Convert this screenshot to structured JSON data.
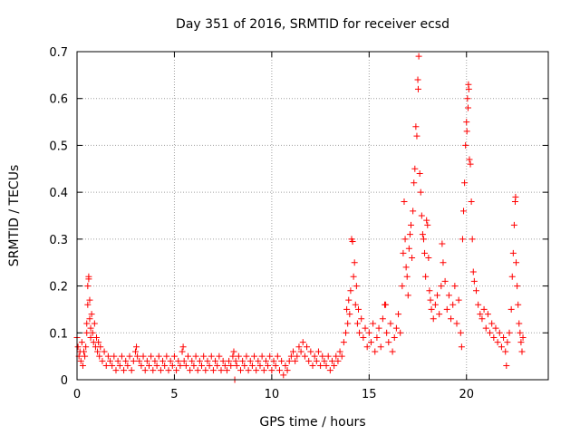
{
  "chart_data": {
    "type": "scatter",
    "title": "Day 351 of 2016, SRMTID for receiver ecsd",
    "xlabel": "GPS time / hours",
    "ylabel": "SRMTID / TECUs",
    "xlim": [
      0,
      24.2
    ],
    "ylim": [
      0,
      0.7
    ],
    "grid": true,
    "marker": "+",
    "color": "#ff0000",
    "xticks": [
      {
        "value": 0,
        "label": "0"
      },
      {
        "value": 5,
        "label": "5"
      },
      {
        "value": 10,
        "label": "10"
      },
      {
        "value": 15,
        "label": "15"
      },
      {
        "value": 20,
        "label": "20"
      }
    ],
    "yticks": [
      {
        "value": 0,
        "label": "0"
      },
      {
        "value": 0.1,
        "label": "0.1"
      },
      {
        "value": 0.2,
        "label": "0.2"
      },
      {
        "value": 0.3,
        "label": "0.3"
      },
      {
        "value": 0.4,
        "label": "0.4"
      },
      {
        "value": 0.5,
        "label": "0.5"
      },
      {
        "value": 0.6,
        "label": "0.6"
      },
      {
        "value": 0.7,
        "label": "0.7"
      }
    ],
    "series": [
      {
        "name": "SRMTID",
        "points": [
          [
            0.0,
            0.09
          ],
          [
            0.05,
            0.07
          ],
          [
            0.1,
            0.05
          ],
          [
            0.15,
            0.06
          ],
          [
            0.2,
            0.04
          ],
          [
            0.25,
            0.08
          ],
          [
            0.3,
            0.03
          ],
          [
            0.35,
            0.06
          ],
          [
            0.4,
            0.05
          ],
          [
            0.45,
            0.07
          ],
          [
            0.5,
            0.1
          ],
          [
            0.5,
            0.12
          ],
          [
            0.55,
            0.16
          ],
          [
            0.55,
            0.2
          ],
          [
            0.6,
            0.22
          ],
          [
            0.6,
            0.215
          ],
          [
            0.65,
            0.13
          ],
          [
            0.65,
            0.17
          ],
          [
            0.7,
            0.11
          ],
          [
            0.7,
            0.09
          ],
          [
            0.75,
            0.14
          ],
          [
            0.8,
            0.1
          ],
          [
            0.85,
            0.08
          ],
          [
            0.9,
            0.12
          ],
          [
            0.95,
            0.07
          ],
          [
            1.0,
            0.09
          ],
          [
            1.05,
            0.06
          ],
          [
            1.1,
            0.08
          ],
          [
            1.15,
            0.05
          ],
          [
            1.2,
            0.07
          ],
          [
            1.3,
            0.04
          ],
          [
            1.4,
            0.06
          ],
          [
            1.5,
            0.03
          ],
          [
            1.6,
            0.05
          ],
          [
            1.7,
            0.04
          ],
          [
            1.8,
            0.03
          ],
          [
            1.9,
            0.05
          ],
          [
            2.0,
            0.02
          ],
          [
            2.1,
            0.04
          ],
          [
            2.2,
            0.03
          ],
          [
            2.3,
            0.05
          ],
          [
            2.4,
            0.02
          ],
          [
            2.5,
            0.04
          ],
          [
            2.6,
            0.03
          ],
          [
            2.7,
            0.05
          ],
          [
            2.8,
            0.02
          ],
          [
            2.9,
            0.04
          ],
          [
            3.0,
            0.06
          ],
          [
            3.05,
            0.07
          ],
          [
            3.1,
            0.05
          ],
          [
            3.2,
            0.04
          ],
          [
            3.3,
            0.03
          ],
          [
            3.4,
            0.05
          ],
          [
            3.5,
            0.02
          ],
          [
            3.6,
            0.04
          ],
          [
            3.7,
            0.03
          ],
          [
            3.8,
            0.05
          ],
          [
            3.9,
            0.02
          ],
          [
            4.0,
            0.04
          ],
          [
            4.1,
            0.03
          ],
          [
            4.2,
            0.05
          ],
          [
            4.3,
            0.02
          ],
          [
            4.4,
            0.04
          ],
          [
            4.5,
            0.03
          ],
          [
            4.6,
            0.05
          ],
          [
            4.7,
            0.02
          ],
          [
            4.8,
            0.04
          ],
          [
            4.9,
            0.03
          ],
          [
            5.0,
            0.05
          ],
          [
            5.1,
            0.02
          ],
          [
            5.2,
            0.04
          ],
          [
            5.3,
            0.03
          ],
          [
            5.4,
            0.06
          ],
          [
            5.45,
            0.07
          ],
          [
            5.5,
            0.04
          ],
          [
            5.6,
            0.03
          ],
          [
            5.7,
            0.05
          ],
          [
            5.8,
            0.02
          ],
          [
            5.9,
            0.04
          ],
          [
            6.0,
            0.03
          ],
          [
            6.1,
            0.05
          ],
          [
            6.2,
            0.02
          ],
          [
            6.3,
            0.04
          ],
          [
            6.4,
            0.03
          ],
          [
            6.5,
            0.05
          ],
          [
            6.6,
            0.02
          ],
          [
            6.7,
            0.04
          ],
          [
            6.8,
            0.03
          ],
          [
            6.9,
            0.05
          ],
          [
            7.0,
            0.02
          ],
          [
            7.1,
            0.04
          ],
          [
            7.2,
            0.03
          ],
          [
            7.3,
            0.05
          ],
          [
            7.4,
            0.02
          ],
          [
            7.5,
            0.04
          ],
          [
            7.6,
            0.03
          ],
          [
            7.7,
            0.02
          ],
          [
            7.8,
            0.04
          ],
          [
            7.9,
            0.03
          ],
          [
            8.0,
            0.05
          ],
          [
            8.05,
            0.06
          ],
          [
            8.1,
            0.0
          ],
          [
            8.15,
            0.04
          ],
          [
            8.2,
            0.03
          ],
          [
            8.3,
            0.05
          ],
          [
            8.4,
            0.02
          ],
          [
            8.5,
            0.04
          ],
          [
            8.6,
            0.03
          ],
          [
            8.7,
            0.05
          ],
          [
            8.8,
            0.02
          ],
          [
            8.9,
            0.04
          ],
          [
            9.0,
            0.03
          ],
          [
            9.1,
            0.05
          ],
          [
            9.2,
            0.02
          ],
          [
            9.3,
            0.04
          ],
          [
            9.4,
            0.03
          ],
          [
            9.5,
            0.05
          ],
          [
            9.6,
            0.02
          ],
          [
            9.7,
            0.04
          ],
          [
            9.8,
            0.03
          ],
          [
            9.9,
            0.05
          ],
          [
            10.0,
            0.02
          ],
          [
            10.1,
            0.04
          ],
          [
            10.2,
            0.03
          ],
          [
            10.3,
            0.05
          ],
          [
            10.4,
            0.02
          ],
          [
            10.5,
            0.04
          ],
          [
            10.6,
            0.01
          ],
          [
            10.7,
            0.03
          ],
          [
            10.8,
            0.02
          ],
          [
            10.9,
            0.04
          ],
          [
            11.0,
            0.05
          ],
          [
            11.1,
            0.06
          ],
          [
            11.2,
            0.04
          ],
          [
            11.3,
            0.05
          ],
          [
            11.4,
            0.07
          ],
          [
            11.5,
            0.06
          ],
          [
            11.6,
            0.08
          ],
          [
            11.7,
            0.05
          ],
          [
            11.8,
            0.07
          ],
          [
            11.9,
            0.04
          ],
          [
            12.0,
            0.06
          ],
          [
            12.1,
            0.03
          ],
          [
            12.2,
            0.05
          ],
          [
            12.3,
            0.04
          ],
          [
            12.4,
            0.06
          ],
          [
            12.5,
            0.03
          ],
          [
            12.6,
            0.05
          ],
          [
            12.7,
            0.04
          ],
          [
            12.8,
            0.03
          ],
          [
            12.9,
            0.05
          ],
          [
            13.0,
            0.02
          ],
          [
            13.1,
            0.04
          ],
          [
            13.2,
            0.03
          ],
          [
            13.3,
            0.05
          ],
          [
            13.4,
            0.04
          ],
          [
            13.5,
            0.06
          ],
          [
            13.6,
            0.05
          ],
          [
            13.7,
            0.08
          ],
          [
            13.8,
            0.1
          ],
          [
            13.85,
            0.15
          ],
          [
            13.9,
            0.12
          ],
          [
            13.95,
            0.17
          ],
          [
            14.0,
            0.14
          ],
          [
            14.05,
            0.19
          ],
          [
            14.1,
            0.3
          ],
          [
            14.15,
            0.295
          ],
          [
            14.2,
            0.22
          ],
          [
            14.25,
            0.25
          ],
          [
            14.3,
            0.16
          ],
          [
            14.35,
            0.2
          ],
          [
            14.4,
            0.12
          ],
          [
            14.45,
            0.15
          ],
          [
            14.5,
            0.1
          ],
          [
            14.6,
            0.13
          ],
          [
            14.7,
            0.09
          ],
          [
            14.8,
            0.11
          ],
          [
            14.9,
            0.07
          ],
          [
            15.0,
            0.1
          ],
          [
            15.1,
            0.08
          ],
          [
            15.2,
            0.12
          ],
          [
            15.3,
            0.06
          ],
          [
            15.4,
            0.09
          ],
          [
            15.5,
            0.11
          ],
          [
            15.6,
            0.07
          ],
          [
            15.7,
            0.13
          ],
          [
            15.8,
            0.16
          ],
          [
            15.85,
            0.16
          ],
          [
            15.9,
            0.1
          ],
          [
            16.0,
            0.08
          ],
          [
            16.1,
            0.12
          ],
          [
            16.2,
            0.06
          ],
          [
            16.3,
            0.09
          ],
          [
            16.4,
            0.11
          ],
          [
            16.5,
            0.14
          ],
          [
            16.6,
            0.1
          ],
          [
            16.7,
            0.2
          ],
          [
            16.75,
            0.27
          ],
          [
            16.8,
            0.38
          ],
          [
            16.85,
            0.3
          ],
          [
            16.9,
            0.24
          ],
          [
            16.95,
            0.22
          ],
          [
            17.0,
            0.18
          ],
          [
            17.05,
            0.28
          ],
          [
            17.1,
            0.31
          ],
          [
            17.15,
            0.33
          ],
          [
            17.2,
            0.26
          ],
          [
            17.25,
            0.36
          ],
          [
            17.3,
            0.42
          ],
          [
            17.35,
            0.45
          ],
          [
            17.4,
            0.54
          ],
          [
            17.45,
            0.52
          ],
          [
            17.5,
            0.64
          ],
          [
            17.52,
            0.62
          ],
          [
            17.55,
            0.69
          ],
          [
            17.6,
            0.44
          ],
          [
            17.65,
            0.4
          ],
          [
            17.7,
            0.35
          ],
          [
            17.75,
            0.31
          ],
          [
            17.8,
            0.3
          ],
          [
            17.85,
            0.27
          ],
          [
            17.9,
            0.22
          ],
          [
            17.95,
            0.34
          ],
          [
            18.0,
            0.33
          ],
          [
            18.05,
            0.26
          ],
          [
            18.1,
            0.19
          ],
          [
            18.15,
            0.17
          ],
          [
            18.2,
            0.15
          ],
          [
            18.3,
            0.13
          ],
          [
            18.4,
            0.16
          ],
          [
            18.5,
            0.18
          ],
          [
            18.6,
            0.14
          ],
          [
            18.7,
            0.2
          ],
          [
            18.75,
            0.29
          ],
          [
            18.8,
            0.25
          ],
          [
            18.9,
            0.21
          ],
          [
            19.0,
            0.15
          ],
          [
            19.1,
            0.18
          ],
          [
            19.2,
            0.13
          ],
          [
            19.3,
            0.16
          ],
          [
            19.4,
            0.2
          ],
          [
            19.5,
            0.12
          ],
          [
            19.6,
            0.17
          ],
          [
            19.7,
            0.1
          ],
          [
            19.75,
            0.07
          ],
          [
            19.8,
            0.3
          ],
          [
            19.85,
            0.36
          ],
          [
            19.9,
            0.42
          ],
          [
            19.95,
            0.5
          ],
          [
            20.0,
            0.55
          ],
          [
            20.02,
            0.53
          ],
          [
            20.05,
            0.6
          ],
          [
            20.08,
            0.58
          ],
          [
            20.1,
            0.63
          ],
          [
            20.12,
            0.62
          ],
          [
            20.15,
            0.47
          ],
          [
            20.2,
            0.46
          ],
          [
            20.25,
            0.38
          ],
          [
            20.3,
            0.3
          ],
          [
            20.35,
            0.23
          ],
          [
            20.4,
            0.21
          ],
          [
            20.5,
            0.19
          ],
          [
            20.6,
            0.16
          ],
          [
            20.7,
            0.14
          ],
          [
            20.8,
            0.13
          ],
          [
            20.9,
            0.15
          ],
          [
            21.0,
            0.11
          ],
          [
            21.1,
            0.14
          ],
          [
            21.2,
            0.1
          ],
          [
            21.3,
            0.12
          ],
          [
            21.4,
            0.09
          ],
          [
            21.5,
            0.11
          ],
          [
            21.6,
            0.08
          ],
          [
            21.7,
            0.1
          ],
          [
            21.8,
            0.07
          ],
          [
            21.9,
            0.09
          ],
          [
            22.0,
            0.06
          ],
          [
            22.05,
            0.03
          ],
          [
            22.1,
            0.08
          ],
          [
            22.2,
            0.1
          ],
          [
            22.3,
            0.15
          ],
          [
            22.35,
            0.22
          ],
          [
            22.4,
            0.27
          ],
          [
            22.45,
            0.33
          ],
          [
            22.5,
            0.38
          ],
          [
            22.52,
            0.39
          ],
          [
            22.55,
            0.25
          ],
          [
            22.6,
            0.2
          ],
          [
            22.65,
            0.16
          ],
          [
            22.7,
            0.12
          ],
          [
            22.75,
            0.1
          ],
          [
            22.8,
            0.08
          ],
          [
            22.85,
            0.06
          ],
          [
            22.9,
            0.09
          ]
        ]
      }
    ]
  }
}
